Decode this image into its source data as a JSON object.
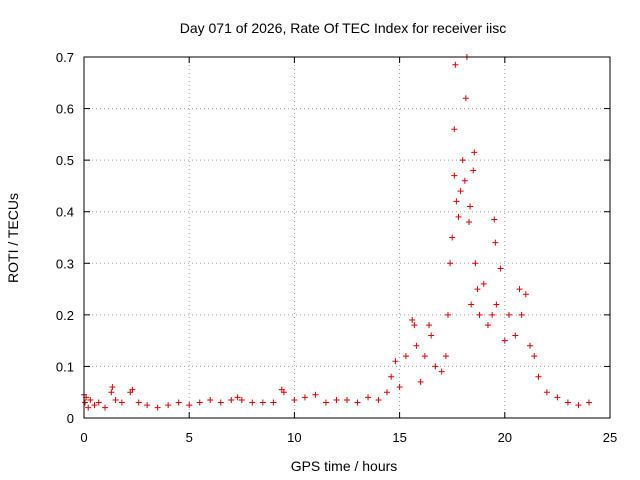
{
  "chart_data": {
    "type": "scatter",
    "title": "Day 071 of 2026, Rate Of TEC Index for receiver iisc",
    "xlabel": "GPS time / hours",
    "ylabel": "ROTI / TECUs",
    "xlim": [
      0,
      25
    ],
    "ylim": [
      0,
      0.7
    ],
    "x_ticks": [
      "0",
      "5",
      "10",
      "15",
      "20",
      "25"
    ],
    "y_ticks": [
      "0",
      "0.1",
      "0.2",
      "0.3",
      "0.4",
      "0.5",
      "0.6",
      "0.7"
    ],
    "grid": true,
    "marker": "+",
    "color": "#e00000",
    "series": [
      {
        "name": "ROTI",
        "points": [
          [
            0.0,
            0.045
          ],
          [
            0.05,
            0.03
          ],
          [
            0.1,
            0.04
          ],
          [
            0.2,
            0.02
          ],
          [
            0.3,
            0.035
          ],
          [
            0.5,
            0.025
          ],
          [
            0.7,
            0.03
          ],
          [
            1.0,
            0.02
          ],
          [
            1.3,
            0.05
          ],
          [
            1.35,
            0.06
          ],
          [
            1.5,
            0.035
          ],
          [
            1.8,
            0.03
          ],
          [
            2.2,
            0.05
          ],
          [
            2.3,
            0.055
          ],
          [
            2.6,
            0.03
          ],
          [
            3.0,
            0.025
          ],
          [
            3.5,
            0.02
          ],
          [
            4.0,
            0.025
          ],
          [
            4.5,
            0.03
          ],
          [
            5.0,
            0.025
          ],
          [
            5.5,
            0.03
          ],
          [
            6.0,
            0.035
          ],
          [
            6.5,
            0.03
          ],
          [
            7.0,
            0.035
          ],
          [
            7.3,
            0.04
          ],
          [
            7.5,
            0.035
          ],
          [
            8.0,
            0.03
          ],
          [
            8.5,
            0.03
          ],
          [
            9.0,
            0.03
          ],
          [
            9.4,
            0.055
          ],
          [
            9.5,
            0.05
          ],
          [
            10.0,
            0.035
          ],
          [
            10.5,
            0.04
          ],
          [
            11.0,
            0.045
          ],
          [
            11.5,
            0.03
          ],
          [
            12.0,
            0.035
          ],
          [
            12.5,
            0.035
          ],
          [
            13.0,
            0.03
          ],
          [
            13.5,
            0.04
          ],
          [
            14.0,
            0.035
          ],
          [
            14.4,
            0.05
          ],
          [
            14.6,
            0.08
          ],
          [
            14.8,
            0.11
          ],
          [
            15.0,
            0.06
          ],
          [
            15.3,
            0.12
          ],
          [
            15.6,
            0.19
          ],
          [
            15.7,
            0.18
          ],
          [
            15.8,
            0.14
          ],
          [
            16.0,
            0.07
          ],
          [
            16.2,
            0.12
          ],
          [
            16.4,
            0.18
          ],
          [
            16.5,
            0.16
          ],
          [
            16.7,
            0.1
          ],
          [
            17.0,
            0.09
          ],
          [
            17.2,
            0.12
          ],
          [
            17.3,
            0.2
          ],
          [
            17.4,
            0.3
          ],
          [
            17.5,
            0.35
          ],
          [
            17.6,
            0.47
          ],
          [
            17.6,
            0.56
          ],
          [
            17.65,
            0.685
          ],
          [
            17.7,
            0.42
          ],
          [
            17.8,
            0.39
          ],
          [
            17.9,
            0.44
          ],
          [
            18.0,
            0.5
          ],
          [
            18.1,
            0.46
          ],
          [
            18.15,
            0.62
          ],
          [
            18.2,
            0.7
          ],
          [
            18.3,
            0.38
          ],
          [
            18.35,
            0.41
          ],
          [
            18.4,
            0.22
          ],
          [
            18.5,
            0.48
          ],
          [
            18.55,
            0.515
          ],
          [
            18.6,
            0.3
          ],
          [
            18.7,
            0.25
          ],
          [
            18.8,
            0.2
          ],
          [
            19.0,
            0.26
          ],
          [
            19.2,
            0.18
          ],
          [
            19.4,
            0.2
          ],
          [
            19.5,
            0.385
          ],
          [
            19.55,
            0.34
          ],
          [
            19.6,
            0.22
          ],
          [
            19.8,
            0.29
          ],
          [
            20.0,
            0.15
          ],
          [
            20.2,
            0.2
          ],
          [
            20.5,
            0.16
          ],
          [
            20.7,
            0.25
          ],
          [
            20.8,
            0.2
          ],
          [
            21.0,
            0.24
          ],
          [
            21.2,
            0.14
          ],
          [
            21.4,
            0.12
          ],
          [
            21.6,
            0.08
          ],
          [
            22.0,
            0.05
          ],
          [
            22.5,
            0.04
          ],
          [
            23.0,
            0.03
          ],
          [
            23.5,
            0.025
          ],
          [
            24.0,
            0.03
          ]
        ]
      }
    ]
  }
}
